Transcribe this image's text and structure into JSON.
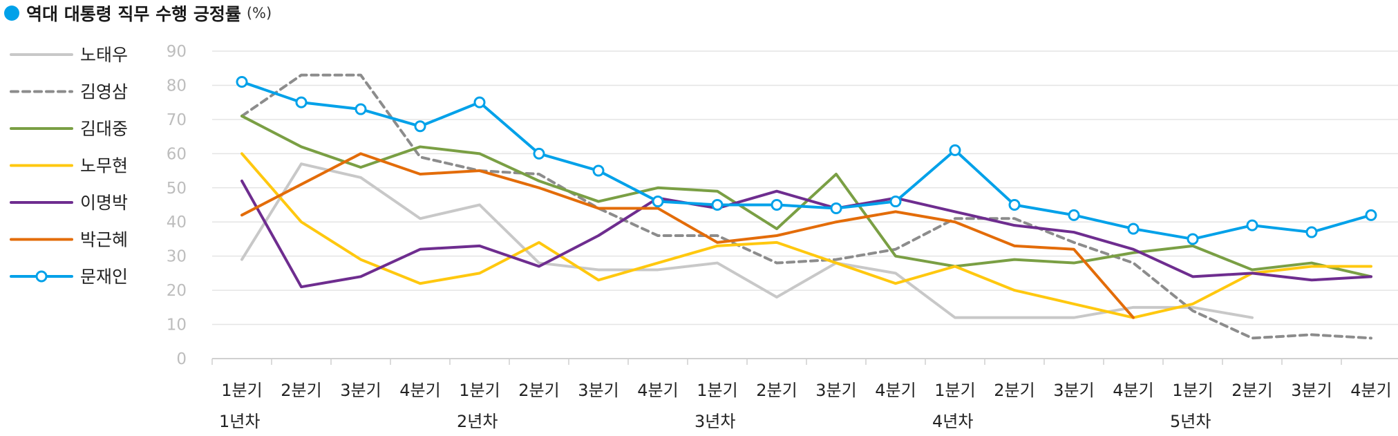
{
  "title": "역대 대통령 직무 수행 긍정률",
  "title_unit": "(%)",
  "chart_data": {
    "type": "line",
    "title": "역대 대통령 직무 수행 긍정률",
    "unit": "(%)",
    "ylim": [
      0,
      90
    ],
    "yticks": [
      "0",
      "10",
      "20",
      "30",
      "40",
      "50",
      "60",
      "70",
      "80",
      "90"
    ],
    "categories": [
      "1분기",
      "2분기",
      "3분기",
      "4분기",
      "1분기",
      "2분기",
      "3분기",
      "4분기",
      "1분기",
      "2분기",
      "3분기",
      "4분기",
      "1분기",
      "2분기",
      "3분기",
      "4분기",
      "1분기",
      "2분기",
      "3분기",
      "4분기"
    ],
    "years": [
      {
        "label": "1년차",
        "start": 0
      },
      {
        "label": "2년차",
        "start": 4
      },
      {
        "label": "3년차",
        "start": 8
      },
      {
        "label": "4년차",
        "start": 12
      },
      {
        "label": "5년차",
        "start": 16
      }
    ],
    "grid": true,
    "legend_position": "left",
    "series": [
      {
        "name": "노태우",
        "color": "#C8C8C8",
        "style": "solid",
        "marker": false,
        "values": [
          29,
          57,
          53,
          41,
          45,
          28,
          26,
          26,
          28,
          18,
          28,
          25,
          12,
          12,
          12,
          15,
          15,
          12,
          null,
          null
        ]
      },
      {
        "name": "김영삼",
        "color": "#8C8C8C",
        "style": "dashed",
        "marker": false,
        "values": [
          71,
          83,
          83,
          59,
          55,
          54,
          44,
          36,
          36,
          28,
          29,
          32,
          41,
          41,
          34,
          28,
          14,
          6,
          7,
          6
        ]
      },
      {
        "name": "김대중",
        "color": "#7A9F44",
        "style": "solid",
        "marker": false,
        "values": [
          71,
          62,
          56,
          62,
          60,
          52,
          46,
          50,
          49,
          38,
          54,
          30,
          27,
          29,
          28,
          31,
          33,
          26,
          28,
          24
        ]
      },
      {
        "name": "노무현",
        "color": "#FFC80F",
        "style": "solid",
        "marker": false,
        "values": [
          60,
          40,
          29,
          22,
          25,
          34,
          23,
          28,
          33,
          34,
          28,
          22,
          27,
          20,
          16,
          12,
          16,
          25,
          27,
          27
        ]
      },
      {
        "name": "이명박",
        "color": "#6E2D8F",
        "style": "solid",
        "marker": false,
        "values": [
          52,
          21,
          24,
          32,
          33,
          27,
          36,
          47,
          44,
          49,
          44,
          47,
          43,
          39,
          37,
          32,
          24,
          25,
          23,
          24
        ]
      },
      {
        "name": "박근혜",
        "color": "#E36C09",
        "style": "solid",
        "marker": false,
        "values": [
          42,
          51,
          60,
          54,
          55,
          50,
          44,
          44,
          34,
          36,
          40,
          43,
          40,
          33,
          32,
          12,
          null,
          null,
          null,
          null
        ]
      },
      {
        "name": "문재인",
        "color": "#00A1E9",
        "style": "solid",
        "marker": true,
        "values": [
          81,
          75,
          73,
          68,
          75,
          60,
          55,
          46,
          45,
          45,
          44,
          46,
          61,
          45,
          42,
          38,
          35,
          39,
          37,
          42
        ]
      }
    ]
  }
}
